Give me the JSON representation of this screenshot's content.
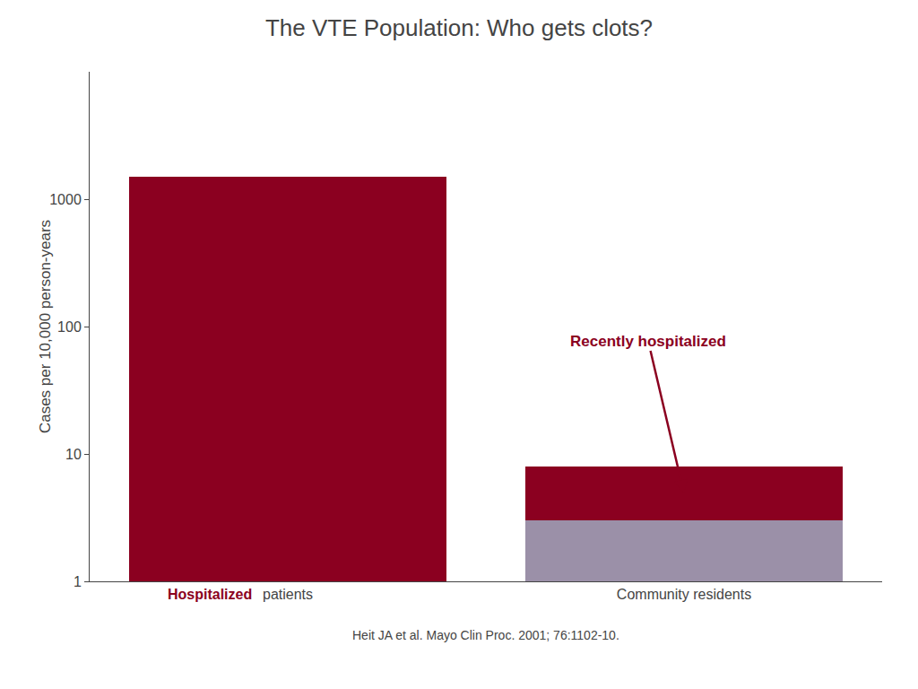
{
  "chart_data": {
    "type": "bar",
    "title": "The VTE Population: Who gets clots?",
    "ylabel": "Cases per 10,000 person-years",
    "categories": [
      "patients",
      "Community residents"
    ],
    "series": [
      {
        "values": [
          1500,
          3.0
        ],
        "colors": [
          "#8b0020",
          "#9b90a8"
        ]
      },
      {
        "values": [
          null,
          5.0
        ],
        "color": "#8b0020"
      }
    ],
    "stacked": true,
    "log": "y",
    "ylim": [
      1,
      10000
    ],
    "yticks": [
      1,
      10,
      100,
      1000
    ],
    "grid": false,
    "annotations": [
      {
        "text": "Hospitalized",
        "color": "#8b0020"
      },
      {
        "text": "Recently hospitalized",
        "color": "#8b0020"
      },
      {
        "text": "Heit JA et al. Mayo Clin Proc. 2001; 76:1102-10."
      }
    ]
  }
}
